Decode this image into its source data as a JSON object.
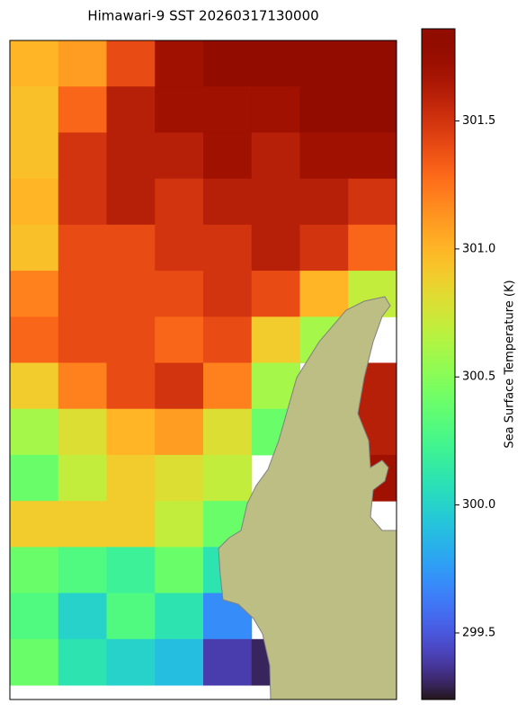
{
  "chart_data": {
    "type": "heatmap",
    "title": "Himawari-9 SST 20260317130000",
    "colorbar_label": "Sea Surface Temperature (K)",
    "colormap": "turbo",
    "clim": [
      299.24,
      301.86
    ],
    "cticks": [
      299.5,
      {
        "value": 300,
        "label": "300.0"
      },
      300.5,
      {
        "value": 301,
        "label": "301.0"
      },
      301.5
    ],
    "land_color": "#bdbe84",
    "z": [
      [
        301.0,
        301.1,
        301.4,
        301.7,
        301.8,
        301.8,
        301.8,
        301.8
      ],
      [
        300.95,
        301.3,
        301.6,
        301.7,
        301.7,
        301.7,
        301.8,
        301.8
      ],
      [
        300.95,
        301.5,
        301.6,
        301.6,
        301.7,
        301.6,
        301.7,
        301.7
      ],
      [
        301.0,
        301.5,
        301.6,
        301.5,
        301.6,
        301.6,
        301.6,
        301.5
      ],
      [
        300.95,
        301.4,
        301.4,
        301.5,
        301.5,
        301.6,
        301.5,
        301.3
      ],
      [
        301.2,
        301.4,
        301.4,
        301.4,
        301.5,
        301.4,
        301.0,
        300.7
      ],
      [
        301.3,
        301.4,
        301.4,
        301.3,
        301.4,
        300.9,
        300.6,
        null
      ],
      [
        300.9,
        301.2,
        301.4,
        301.5,
        301.2,
        300.6,
        null,
        301.6
      ],
      [
        300.6,
        300.8,
        301.0,
        301.1,
        300.8,
        300.4,
        null,
        301.6
      ],
      [
        300.4,
        300.7,
        300.9,
        300.8,
        300.7,
        null,
        null,
        301.7
      ],
      [
        300.9,
        300.9,
        300.9,
        300.7,
        300.4,
        null,
        null,
        null
      ],
      [
        300.4,
        300.3,
        300.2,
        300.4,
        300.1,
        null,
        null,
        null
      ],
      [
        300.3,
        300.0,
        300.3,
        300.1,
        299.7,
        null,
        null,
        null
      ],
      [
        300.4,
        300.1,
        300.0,
        299.9,
        299.4,
        299.3,
        null,
        null
      ]
    ]
  }
}
